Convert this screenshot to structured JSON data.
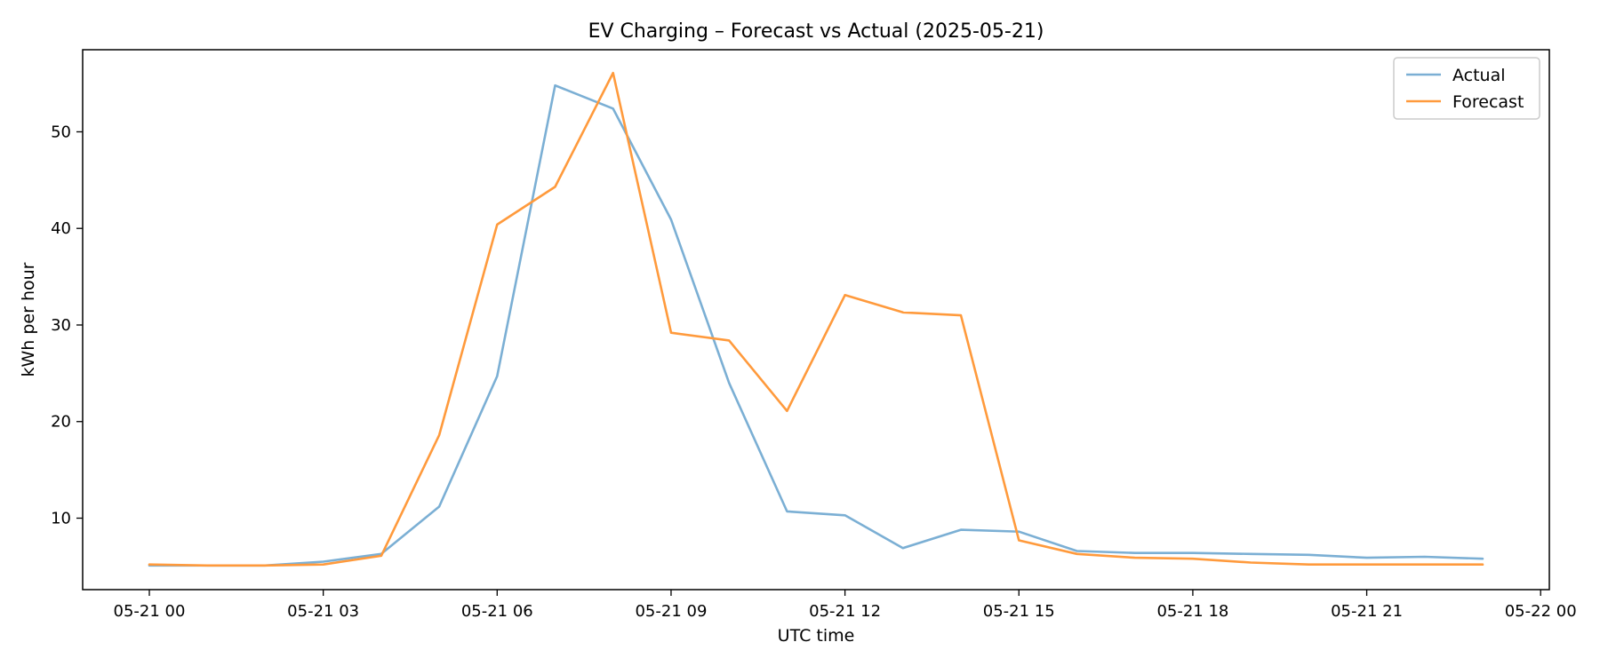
{
  "chart_data": {
    "type": "line",
    "title": "EV Charging – Forecast vs Actual (2025-05-21)",
    "xlabel": "UTC time",
    "ylabel": "kWh per hour",
    "x": [
      "05-21 00",
      "05-21 01",
      "05-21 02",
      "05-21 03",
      "05-21 04",
      "05-21 05",
      "05-21 06",
      "05-21 07",
      "05-21 08",
      "05-21 09",
      "05-21 10",
      "05-21 11",
      "05-21 12",
      "05-21 13",
      "05-21 14",
      "05-21 15",
      "05-21 16",
      "05-21 17",
      "05-21 18",
      "05-21 19",
      "05-21 20",
      "05-21 21",
      "05-21 22",
      "05-21 23"
    ],
    "x_hours": [
      0,
      1,
      2,
      3,
      4,
      5,
      6,
      7,
      8,
      9,
      10,
      11,
      12,
      13,
      14,
      15,
      16,
      17,
      18,
      19,
      20,
      21,
      22,
      23
    ],
    "xlim": [
      -1.15,
      24.15
    ],
    "xticks": [
      {
        "hour": 0,
        "label": "05-21 00"
      },
      {
        "hour": 3,
        "label": "05-21 03"
      },
      {
        "hour": 6,
        "label": "05-21 06"
      },
      {
        "hour": 9,
        "label": "05-21 09"
      },
      {
        "hour": 12,
        "label": "05-21 12"
      },
      {
        "hour": 15,
        "label": "05-21 15"
      },
      {
        "hour": 18,
        "label": "05-21 18"
      },
      {
        "hour": 21,
        "label": "05-21 21"
      },
      {
        "hour": 24,
        "label": "05-22 00"
      }
    ],
    "ylim": [
      2.6,
      58.5
    ],
    "yticks": [
      10,
      20,
      30,
      40,
      50
    ],
    "grid": false,
    "legend_position": "top-right",
    "series": [
      {
        "name": "Actual",
        "color": "#7bafd4",
        "values": [
          5.1,
          5.1,
          5.1,
          5.5,
          6.3,
          11.2,
          24.7,
          54.8,
          52.4,
          40.9,
          24.0,
          10.7,
          10.3,
          6.9,
          8.8,
          8.6,
          6.6,
          6.4,
          6.4,
          6.3,
          6.2,
          5.9,
          6.0,
          5.8
        ]
      },
      {
        "name": "Forecast",
        "color": "#ff9a3c",
        "values": [
          5.2,
          5.1,
          5.1,
          5.2,
          6.1,
          18.6,
          40.4,
          44.3,
          56.1,
          29.2,
          28.4,
          21.1,
          33.1,
          31.3,
          31.0,
          7.7,
          6.3,
          5.9,
          5.8,
          5.4,
          5.2,
          5.2,
          5.2,
          5.2
        ]
      }
    ]
  }
}
